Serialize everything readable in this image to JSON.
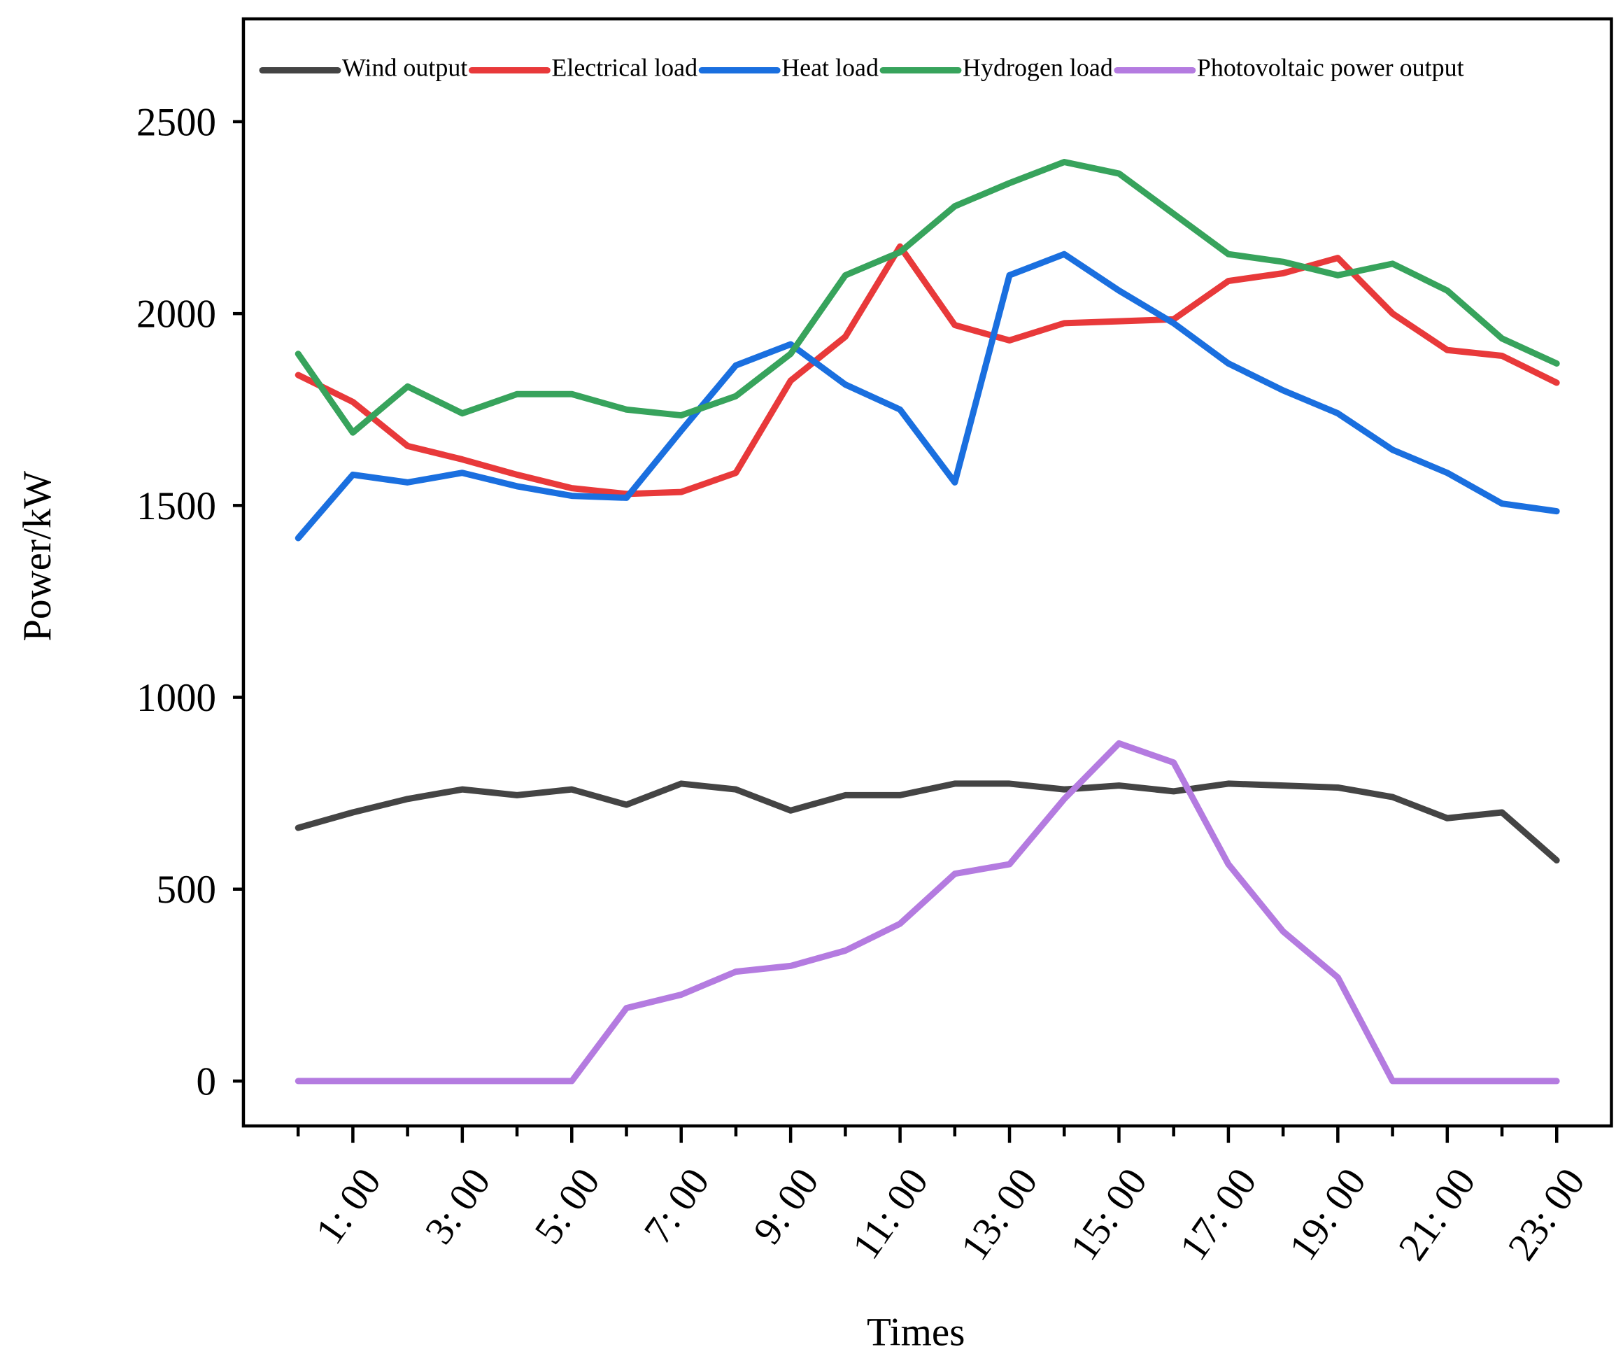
{
  "chart_data": {
    "type": "line",
    "x_label": "Times",
    "y_label": "Power/kW",
    "categories": [
      null,
      "1: 00",
      null,
      "3: 00",
      null,
      "5: 00",
      null,
      "7: 00",
      null,
      "9: 00",
      null,
      "11: 00",
      null,
      "13: 00",
      null,
      "15: 00",
      null,
      "17: 00",
      null,
      "19: 00",
      null,
      "21: 00",
      null,
      "23: 00"
    ],
    "series": [
      {
        "name": "Wind output",
        "color": "#444444",
        "values": [
          660,
          700,
          735,
          760,
          745,
          760,
          720,
          775,
          760,
          705,
          745,
          745,
          775,
          775,
          760,
          770,
          755,
          775,
          770,
          765,
          740,
          685,
          700,
          575
        ]
      },
      {
        "name": "Electrical load",
        "color": "#e8393a",
        "values": [
          1840,
          1770,
          1655,
          1620,
          1580,
          1545,
          1530,
          1535,
          1585,
          1825,
          1940,
          2175,
          1970,
          1930,
          1975,
          1980,
          1985,
          2085,
          2105,
          2145,
          2000,
          1905,
          1890,
          1820
        ]
      },
      {
        "name": "Heat load",
        "color": "#1a6fdf",
        "values": [
          1415,
          1580,
          1560,
          1585,
          1550,
          1525,
          1520,
          1695,
          1865,
          1920,
          1815,
          1750,
          1560,
          2100,
          2155,
          2060,
          1975,
          1870,
          1800,
          1740,
          1645,
          1585,
          1505,
          1485
        ]
      },
      {
        "name": "Hydrogen load",
        "color": "#37a35c",
        "values": [
          1895,
          1690,
          1810,
          1740,
          1790,
          1790,
          1750,
          1735,
          1785,
          1895,
          2100,
          2160,
          2280,
          2340,
          2395,
          2365,
          2260,
          2155,
          2135,
          2100,
          2130,
          2060,
          1935,
          1870
        ]
      },
      {
        "name": "Photovoltaic power output",
        "color": "#b47be0",
        "values": [
          0,
          0,
          0,
          0,
          0,
          0,
          190,
          225,
          285,
          300,
          340,
          410,
          540,
          565,
          735,
          880,
          830,
          565,
          390,
          270,
          0,
          0,
          0,
          0
        ]
      }
    ],
    "ylim": [
      -117,
      2768
    ],
    "yticks": [
      0,
      500,
      1000,
      1500,
      2000,
      2500
    ],
    "legend": "upper left",
    "grid": false
  }
}
